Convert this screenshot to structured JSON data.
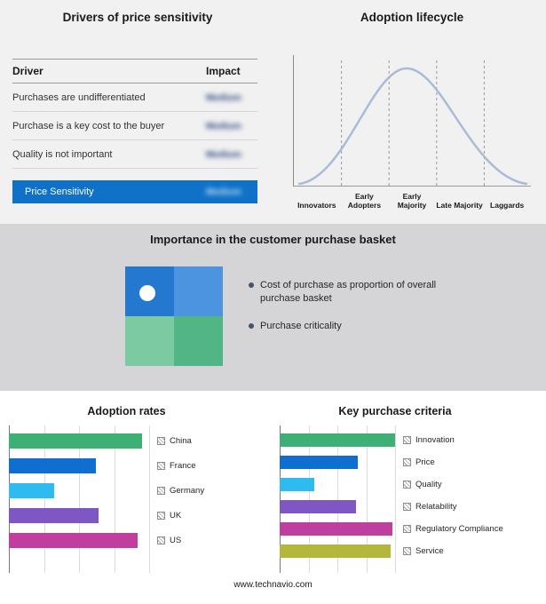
{
  "page": {
    "footer": "www.technavio.com",
    "background_top": "#f1f1f2",
    "background_band": "#d5d5d7",
    "background_bottom": "#ffffff"
  },
  "drivers_panel": {
    "title": "Drivers of price sensitivity",
    "columns": [
      "Driver",
      "Impact"
    ],
    "rows": [
      {
        "driver": "Purchases are undifferentiated",
        "impact": "Medium"
      },
      {
        "driver": "Purchase is a key cost to the buyer",
        "impact": "Medium"
      },
      {
        "driver": "Quality is not important",
        "impact": "Medium"
      }
    ],
    "highlight_row": {
      "driver": "Price Sensitivity",
      "impact": "Medium"
    },
    "highlight_color": "#0f72c8",
    "impact_values_blurred": true
  },
  "lifecycle_panel": {
    "title": "Adoption lifecycle",
    "stages": [
      "Innovators",
      "Early Adopters",
      "Early Majority",
      "Late Majority",
      "Laggards"
    ],
    "curve_color": "#a8bcd6"
  },
  "basket_panel": {
    "title": "Importance in the customer purchase basket",
    "bullets": [
      "Cost of purchase as proportion of overall purchase basket",
      "Purchase criticality"
    ],
    "quad_colors": {
      "top_left": "#2478d0",
      "top_right": "#4d94e0",
      "bottom_left": "#7ccaa2",
      "bottom_right": "#52b586"
    }
  },
  "chart_data": [
    {
      "type": "line",
      "subtype": "bell-curve",
      "title": "Adoption lifecycle",
      "x_categories": [
        "Innovators",
        "Early Adopters",
        "Early Majority",
        "Late Majority",
        "Laggards"
      ],
      "description": "Normal-distribution adoption curve rising from Innovators, peaking at Early Majority, falling to Laggards",
      "line_color": "#a8bcd6",
      "grid": "dashed vertical separators between stages",
      "legend_position": "none"
    },
    {
      "type": "bar",
      "orientation": "horizontal",
      "title": "Adoption rates",
      "categories": [
        "China",
        "France",
        "Germany",
        "UK",
        "US"
      ],
      "values": [
        95,
        62,
        32,
        64,
        92
      ],
      "colors": [
        "#3eb075",
        "#0e6fd0",
        "#2ebcf0",
        "#7e57c4",
        "#c03f9e"
      ],
      "xlim": [
        0,
        100
      ],
      "grid": true,
      "legend_position": "right"
    },
    {
      "type": "bar",
      "orientation": "horizontal",
      "title": "Key purchase criteria",
      "categories": [
        "Innovation",
        "Price",
        "Quality",
        "Relatability",
        "Regulatory Compliance",
        "Service"
      ],
      "values": [
        100,
        68,
        30,
        66,
        98,
        96
      ],
      "colors": [
        "#3eb075",
        "#0e6fd0",
        "#2ebcf0",
        "#7e57c4",
        "#c03f9e",
        "#b5b63c"
      ],
      "xlim": [
        0,
        100
      ],
      "grid": true,
      "legend_position": "right"
    }
  ]
}
